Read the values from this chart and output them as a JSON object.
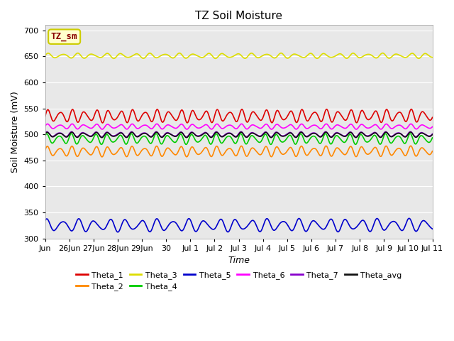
{
  "title": "TZ Soil Moisture",
  "ylabel": "Soil Moisture (mV)",
  "xlabel": "Time",
  "ylim": [
    300,
    710
  ],
  "yticks": [
    300,
    350,
    400,
    450,
    500,
    550,
    600,
    650,
    700
  ],
  "series": {
    "Theta_1": {
      "color": "#dd0000",
      "base": 535,
      "amp": 10,
      "period": 0.5,
      "phase": 0.0,
      "trend": 0.03
    },
    "Theta_2": {
      "color": "#ff8800",
      "base": 467,
      "amp": 8,
      "period": 0.5,
      "phase": 0.3,
      "trend": 0.04
    },
    "Theta_3": {
      "color": "#dddd00",
      "base": 651,
      "amp": 4,
      "period": 0.6,
      "phase": 0.1,
      "trend": 0.005
    },
    "Theta_4": {
      "color": "#00cc00",
      "base": 491,
      "amp": 8,
      "period": 0.5,
      "phase": 0.6,
      "trend": 0.0
    },
    "Theta_5": {
      "color": "#0000cc",
      "base": 325,
      "amp": 10,
      "period": 0.65,
      "phase": 0.8,
      "trend": 0.05
    },
    "Theta_6": {
      "color": "#ff00ff",
      "base": 515,
      "amp": 4,
      "period": 0.5,
      "phase": 0.2,
      "trend": -0.005
    },
    "Theta_7": {
      "color": "#8800cc",
      "base": 500,
      "amp": 4,
      "period": 0.5,
      "phase": 0.5,
      "trend": 0.005
    },
    "Theta_avg": {
      "color": "#111111",
      "base": 499,
      "amp": 4,
      "period": 0.5,
      "phase": 0.4,
      "trend": 0.01
    }
  },
  "x_tick_labels": [
    "Jun",
    "26Jun",
    "27Jun",
    "28Jun",
    "29Jun",
    "30",
    "Jul 1",
    "Jul 2",
    "Jul 3",
    "Jul 4",
    "Jul 5",
    "Jul 6",
    "Jul 7",
    "Jul 8",
    "Jul 9",
    "Jul 10",
    "Jul 11"
  ],
  "x_tick_positions": [
    0,
    1,
    2,
    3,
    4,
    5,
    6,
    7,
    8,
    9,
    10,
    11,
    12,
    13,
    14,
    15,
    16
  ],
  "bg_color": "#e8e8e8",
  "fig_bg": "#ffffff",
  "annotation_text": "TZ_sm",
  "annotation_color": "#880000",
  "annotation_bg": "#ffffcc",
  "annotation_border": "#cccc00"
}
